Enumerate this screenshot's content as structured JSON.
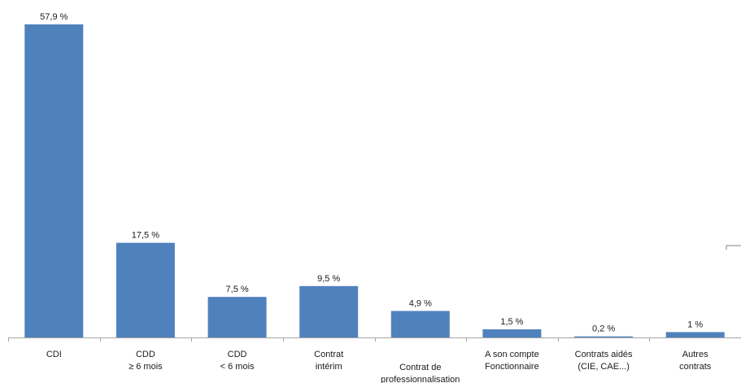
{
  "chart_data": {
    "type": "bar",
    "categories": [
      [
        "CDI"
      ],
      [
        "CDD",
        "≥ 6 mois"
      ],
      [
        "CDD",
        "< 6 mois"
      ],
      [
        "Contrat",
        "intérim"
      ],
      [
        "Contrat de",
        "professionnalisation"
      ],
      [
        "A son compte",
        "Fonctionnaire"
      ],
      [
        "Contrats aidés",
        "(CIE, CAE...)"
      ],
      [
        "Autres",
        "contrats"
      ]
    ],
    "values": [
      57.9,
      17.5,
      7.5,
      9.5,
      4.9,
      1.5,
      0.2,
      1
    ],
    "value_labels": [
      "57,9 %",
      "17,5 %",
      "7,5 %",
      "9,5 %",
      "4,9 %",
      "1,5 %",
      "0,2 %",
      "1 %"
    ],
    "ylim": [
      0,
      58
    ],
    "bar_color": "#4f81bd",
    "axis_color": "#a6a6a6",
    "grid": false,
    "legend": "none"
  }
}
